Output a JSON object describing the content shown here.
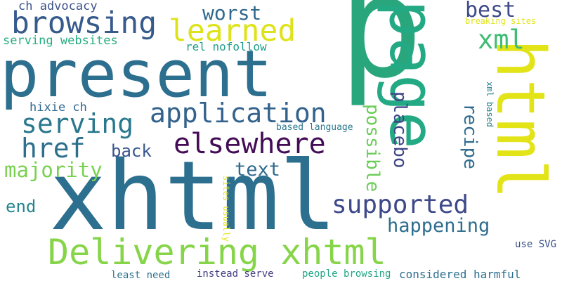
{
  "words": [
    {
      "text": "p",
      "color": "#2aa67d"
    },
    {
      "text": "xhtml",
      "color": "#2c6f8e"
    },
    {
      "text": "present",
      "color": "#2d6f8e"
    },
    {
      "text": "page",
      "color": "#23a983"
    },
    {
      "text": "html",
      "color": "#e3e418"
    },
    {
      "text": "Delivering xhtml",
      "color": "#86d549"
    },
    {
      "text": "browsing",
      "color": "#375a8c"
    },
    {
      "text": "learned",
      "color": "#dde318"
    },
    {
      "text": "application",
      "color": "#33638d"
    },
    {
      "text": "elsewhere",
      "color": "#440c56"
    },
    {
      "text": "serving",
      "color": "#2a788e"
    },
    {
      "text": "href",
      "color": "#2d708e"
    },
    {
      "text": "supported",
      "color": "#3e4989"
    },
    {
      "text": "xml",
      "color": "#3fbc73"
    },
    {
      "text": "worst",
      "color": "#31688e"
    },
    {
      "text": "best",
      "color": "#3e4a89"
    },
    {
      "text": "majority",
      "color": "#7ad151"
    },
    {
      "text": "happening",
      "color": "#2e6e8e"
    },
    {
      "text": "text",
      "color": "#2f6b8e"
    },
    {
      "text": "back",
      "color": "#39568c"
    },
    {
      "text": "end",
      "color": "#25848e"
    },
    {
      "text": "possible",
      "color": "#6ccd5a"
    },
    {
      "text": "placebo",
      "color": "#3f4788"
    },
    {
      "text": "recipe",
      "color": "#2f6c8e"
    },
    {
      "text": "ch advocacy",
      "color": "#3b528b"
    },
    {
      "text": "serving websites",
      "color": "#27ad81"
    },
    {
      "text": "rel nofollow",
      "color": "#1f9e89"
    },
    {
      "text": "hixie ch",
      "color": "#31688e"
    },
    {
      "text": "based language",
      "color": "#2a788e"
    },
    {
      "text": "xml based",
      "color": "#26828e"
    },
    {
      "text": "breaking sites",
      "color": "#e2e418"
    },
    {
      "text": "sites usually",
      "color": "#e7e419"
    },
    {
      "text": "use SVG",
      "color": "#3b528b"
    },
    {
      "text": "least need",
      "color": "#2c718e"
    },
    {
      "text": "instead serve",
      "color": "#433e85"
    },
    {
      "text": "people browsing",
      "color": "#21a585"
    },
    {
      "text": "considered harmful",
      "color": "#2e6f8e"
    }
  ]
}
